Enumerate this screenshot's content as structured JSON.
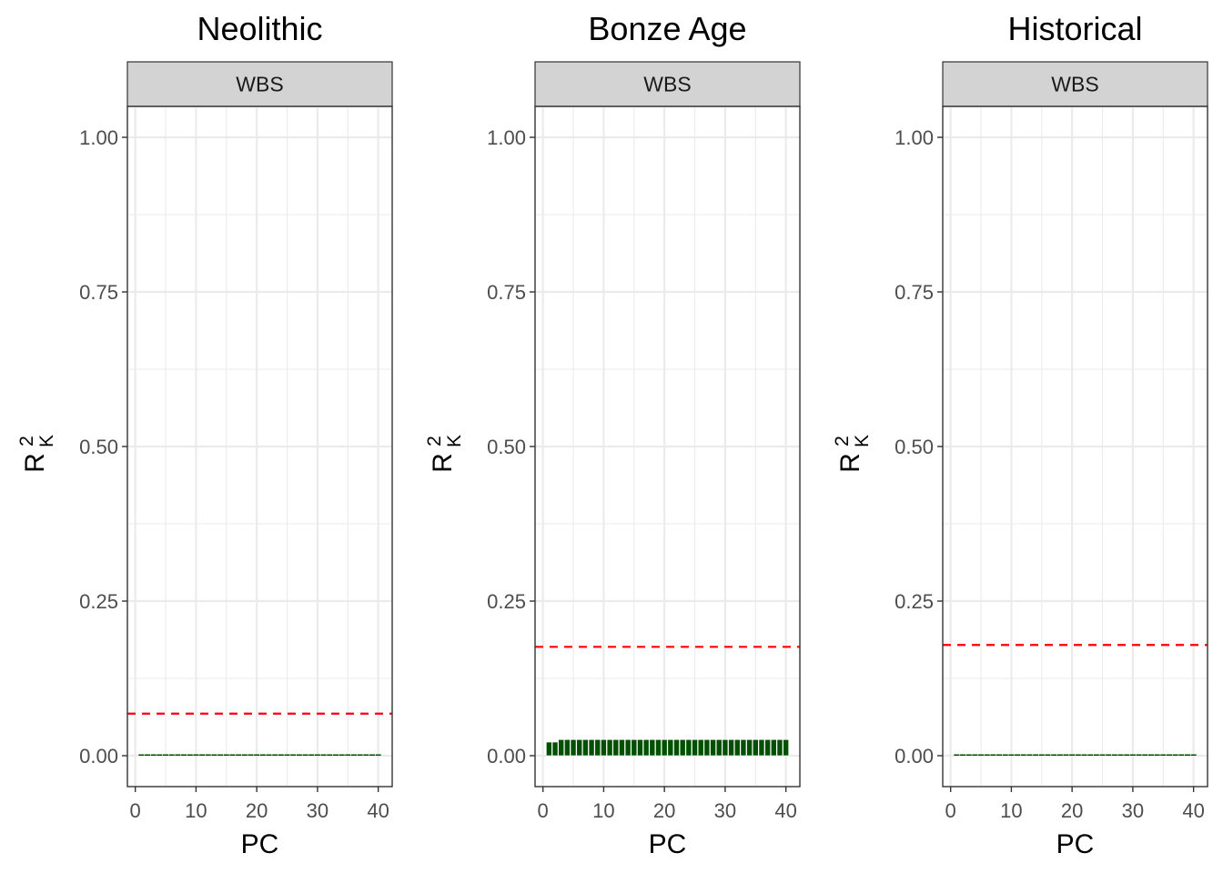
{
  "chart_data": [
    {
      "type": "bar",
      "title": "Neolithic",
      "facet_label": "WBS",
      "xlabel": "PC",
      "ylabel_base": "R",
      "ylabel_sup": "2",
      "ylabel_sub": "K",
      "xlim": [
        -1.3,
        42.3
      ],
      "ylim": [
        -0.05,
        1.05
      ],
      "xticks": [
        0,
        10,
        20,
        30,
        40
      ],
      "xtick_labels": [
        "0",
        "10",
        "20",
        "30",
        "40"
      ],
      "yticks": [
        0,
        0.25,
        0.5,
        0.75,
        1.0
      ],
      "ytick_labels": [
        "0.00",
        "0.25",
        "0.50",
        "0.75",
        "1.00"
      ],
      "x": [
        1,
        2,
        3,
        4,
        5,
        6,
        7,
        8,
        9,
        10,
        11,
        12,
        13,
        14,
        15,
        16,
        17,
        18,
        19,
        20,
        21,
        22,
        23,
        24,
        25,
        26,
        27,
        28,
        29,
        30,
        31,
        32,
        33,
        34,
        35,
        36,
        37,
        38,
        39,
        40
      ],
      "values": [
        0.002,
        0.002,
        0.002,
        0.002,
        0.002,
        0.002,
        0.002,
        0.002,
        0.002,
        0.002,
        0.002,
        0.002,
        0.002,
        0.002,
        0.002,
        0.002,
        0.002,
        0.002,
        0.002,
        0.002,
        0.002,
        0.002,
        0.002,
        0.002,
        0.002,
        0.002,
        0.002,
        0.002,
        0.002,
        0.002,
        0.002,
        0.002,
        0.002,
        0.002,
        0.002,
        0.002,
        0.002,
        0.002,
        0.002,
        0.002
      ],
      "threshold": 0.068,
      "bar_color": "#005000",
      "threshold_color": "#ff0000"
    },
    {
      "type": "bar",
      "title": "Bonze Age",
      "facet_label": "WBS",
      "xlabel": "PC",
      "ylabel_base": "R",
      "ylabel_sup": "2",
      "ylabel_sub": "K",
      "xlim": [
        -1.3,
        42.3
      ],
      "ylim": [
        -0.05,
        1.05
      ],
      "xticks": [
        0,
        10,
        20,
        30,
        40
      ],
      "xtick_labels": [
        "0",
        "10",
        "20",
        "30",
        "40"
      ],
      "yticks": [
        0,
        0.25,
        0.5,
        0.75,
        1.0
      ],
      "ytick_labels": [
        "0.00",
        "0.25",
        "0.50",
        "0.75",
        "1.00"
      ],
      "x": [
        1,
        2,
        3,
        4,
        5,
        6,
        7,
        8,
        9,
        10,
        11,
        12,
        13,
        14,
        15,
        16,
        17,
        18,
        19,
        20,
        21,
        22,
        23,
        24,
        25,
        26,
        27,
        28,
        29,
        30,
        31,
        32,
        33,
        34,
        35,
        36,
        37,
        38,
        39,
        40
      ],
      "values": [
        0.022,
        0.022,
        0.026,
        0.026,
        0.026,
        0.026,
        0.026,
        0.026,
        0.026,
        0.026,
        0.026,
        0.026,
        0.026,
        0.026,
        0.026,
        0.026,
        0.026,
        0.026,
        0.026,
        0.026,
        0.026,
        0.026,
        0.026,
        0.026,
        0.026,
        0.026,
        0.026,
        0.026,
        0.026,
        0.026,
        0.026,
        0.026,
        0.026,
        0.026,
        0.026,
        0.026,
        0.026,
        0.026,
        0.026,
        0.026
      ],
      "threshold": 0.176,
      "bar_color": "#005000",
      "threshold_color": "#ff0000"
    },
    {
      "type": "bar",
      "title": "Historical",
      "facet_label": "WBS",
      "xlabel": "PC",
      "ylabel_base": "R",
      "ylabel_sup": "2",
      "ylabel_sub": "K",
      "xlim": [
        -1.3,
        42.3
      ],
      "ylim": [
        -0.05,
        1.05
      ],
      "xticks": [
        0,
        10,
        20,
        30,
        40
      ],
      "xtick_labels": [
        "0",
        "10",
        "20",
        "30",
        "40"
      ],
      "yticks": [
        0,
        0.25,
        0.5,
        0.75,
        1.0
      ],
      "ytick_labels": [
        "0.00",
        "0.25",
        "0.50",
        "0.75",
        "1.00"
      ],
      "x": [
        1,
        2,
        3,
        4,
        5,
        6,
        7,
        8,
        9,
        10,
        11,
        12,
        13,
        14,
        15,
        16,
        17,
        18,
        19,
        20,
        21,
        22,
        23,
        24,
        25,
        26,
        27,
        28,
        29,
        30,
        31,
        32,
        33,
        34,
        35,
        36,
        37,
        38,
        39,
        40
      ],
      "values": [
        0.0008,
        0.0008,
        0.0008,
        0.0008,
        0.0008,
        0.0008,
        0.0008,
        0.0008,
        0.0008,
        0.0008,
        0.0008,
        0.0008,
        0.0008,
        0.0008,
        0.0008,
        0.0008,
        0.0008,
        0.0008,
        0.0008,
        0.0008,
        0.0008,
        0.0008,
        0.0008,
        0.0008,
        0.0008,
        0.0008,
        0.0008,
        0.0008,
        0.0008,
        0.0008,
        0.0008,
        0.0008,
        0.0008,
        0.0008,
        0.0008,
        0.0008,
        0.0008,
        0.0008,
        0.0008,
        0.0008
      ],
      "threshold": 0.179,
      "bar_color": "#005000",
      "threshold_color": "#ff0000"
    }
  ]
}
